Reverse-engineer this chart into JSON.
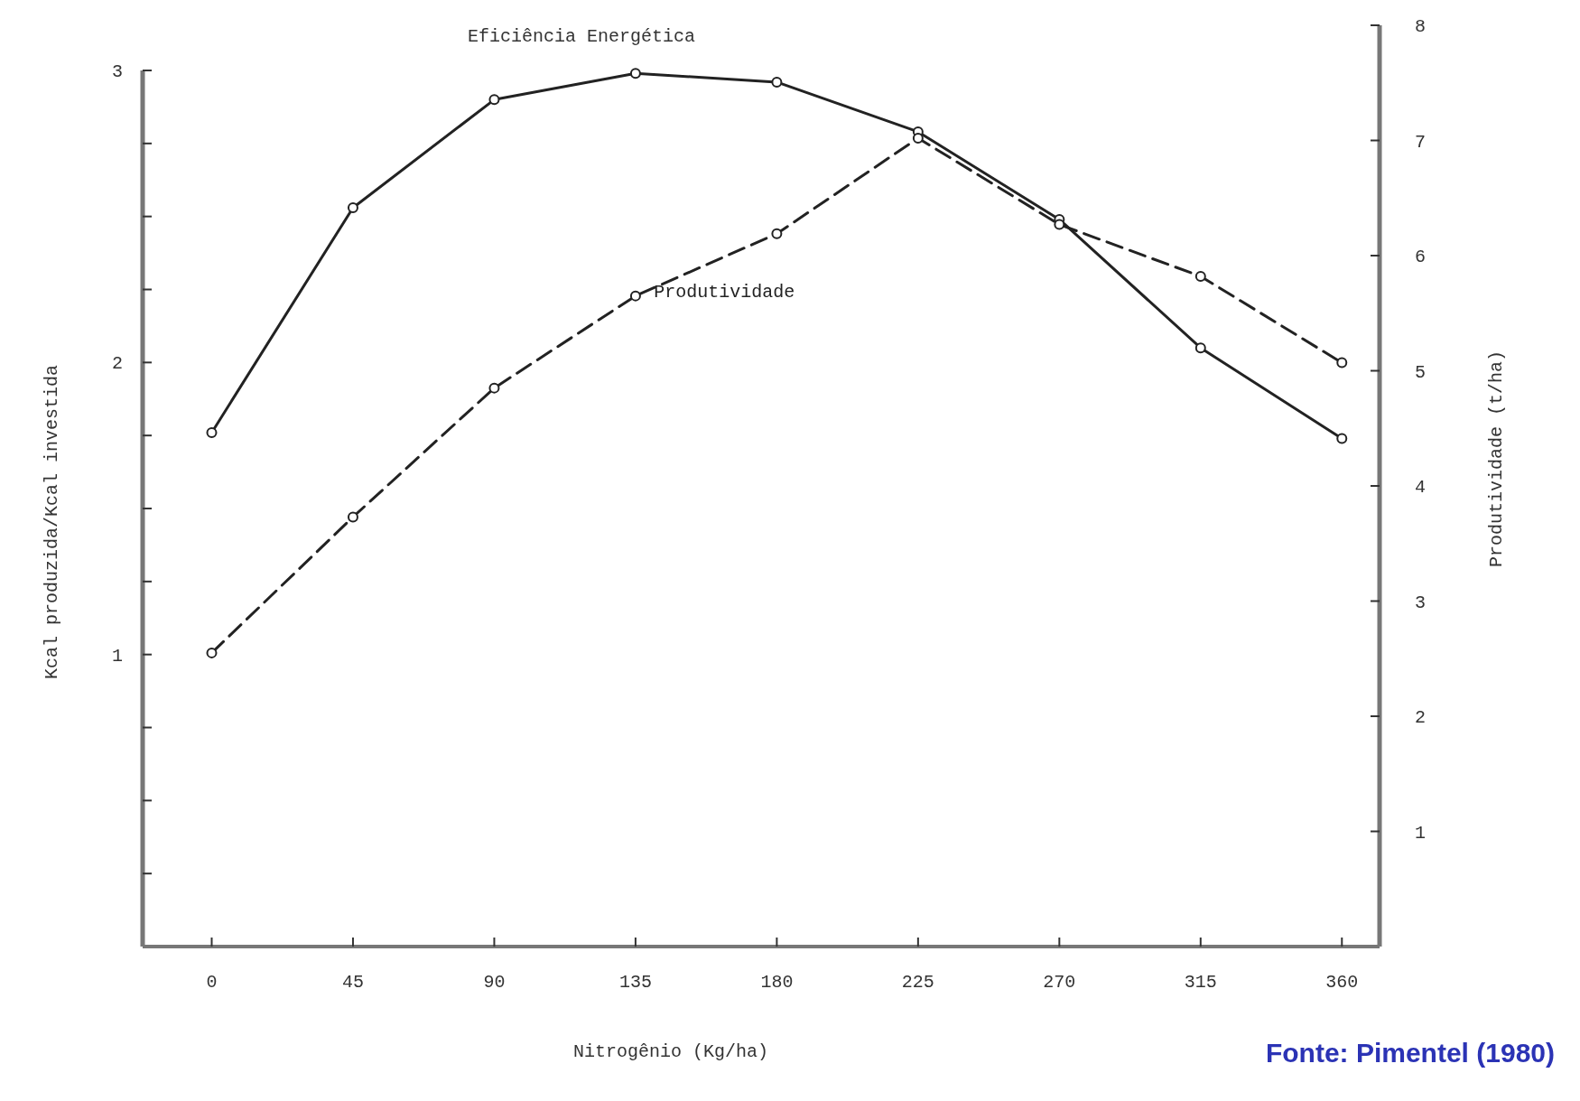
{
  "chart_data": {
    "type": "line",
    "xlabel": "Nitrogênio  (Kg/ha)",
    "ylabel": "Kcal produzida/Kcal investida",
    "y2label": "Produtividade   (t/ha)",
    "x": [
      0,
      45,
      90,
      135,
      180,
      225,
      270,
      315,
      360
    ],
    "xlim": [
      -22,
      372
    ],
    "xticks": [
      0,
      45,
      90,
      135,
      180,
      225,
      270,
      315,
      360
    ],
    "ylim": [
      0,
      3
    ],
    "yticks": [
      {
        "value": 0.25,
        "label": null
      },
      {
        "value": 0.5,
        "label": null
      },
      {
        "value": 0.75,
        "label": null
      },
      1,
      {
        "value": 1.25,
        "label": null
      },
      {
        "value": 1.5,
        "label": null
      },
      {
        "value": 1.75,
        "label": null
      },
      2,
      {
        "value": 2.25,
        "label": null
      },
      {
        "value": 2.5,
        "label": null
      },
      {
        "value": 2.75,
        "label": null
      },
      3
    ],
    "y2lim": [
      0,
      8
    ],
    "y2ticks": [
      1,
      2,
      3,
      4,
      5,
      6,
      7,
      8
    ],
    "marker": "circle",
    "grid": false,
    "series": [
      {
        "name": "Eficiência Energética",
        "color": "#222222",
        "line_style": "solid",
        "values": [
          1.76,
          2.53,
          2.9,
          2.99,
          2.96,
          2.79,
          2.49,
          2.05,
          1.74
        ]
      },
      {
        "name": "Produtividade",
        "color": "#222222",
        "line_style": "dashed",
        "axis": "y2",
        "values": [
          2.55,
          3.73,
          4.85,
          5.65,
          6.19,
          7.02,
          6.27,
          5.82,
          5.07
        ]
      }
    ],
    "annotations": [
      "Fonte: Pimentel (1980)"
    ]
  }
}
